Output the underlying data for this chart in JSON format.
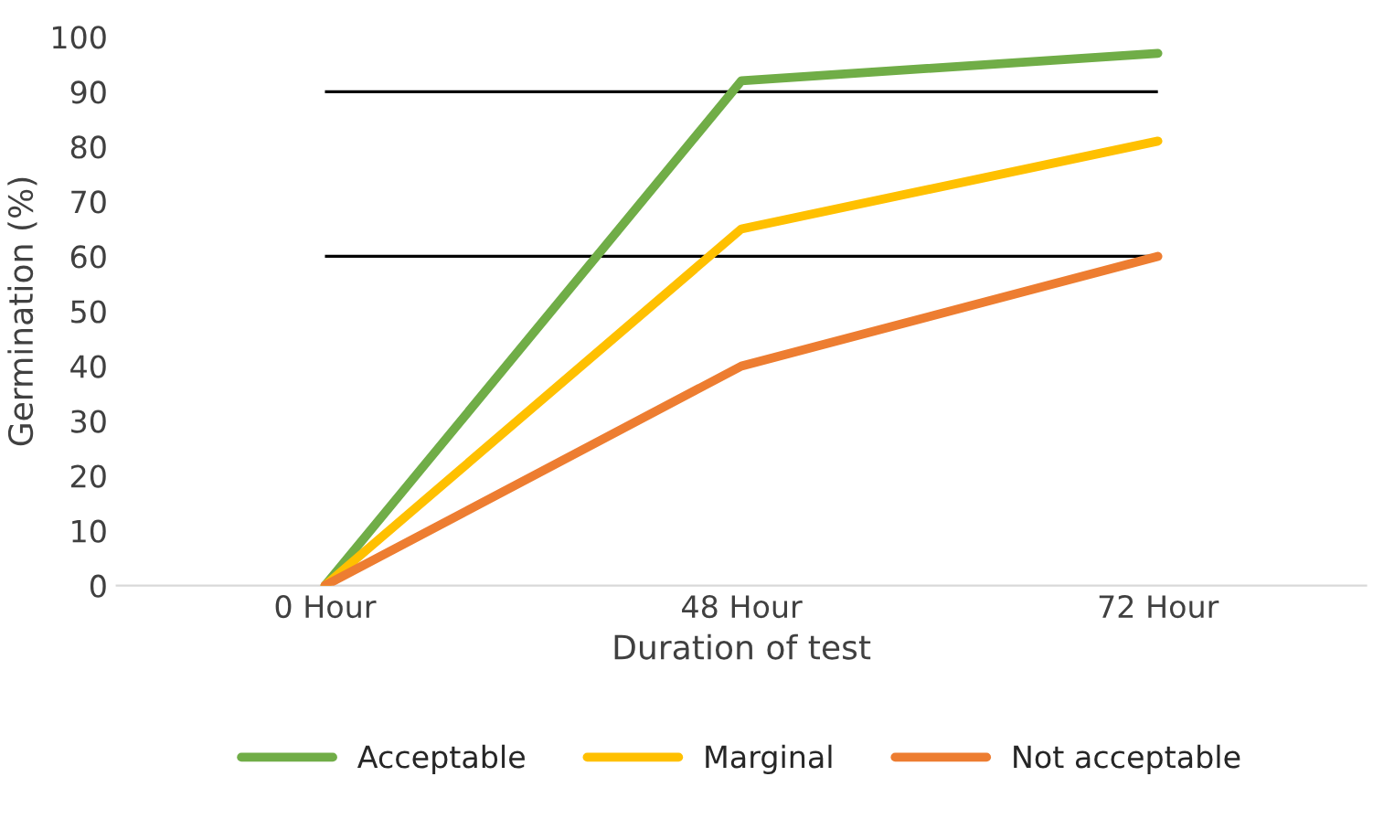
{
  "chart_data": {
    "type": "line",
    "xlabel": "Duration of test",
    "ylabel": "Germination (%)",
    "categories": [
      "0 Hour",
      "48 Hour",
      "72 Hour"
    ],
    "series": [
      {
        "name": "Acceptable",
        "color": "#70ad47",
        "values": [
          0,
          92,
          97
        ]
      },
      {
        "name": "Marginal",
        "color": "#ffc000",
        "values": [
          0,
          65,
          81
        ]
      },
      {
        "name": "Not acceptable",
        "color": "#ed7d31",
        "values": [
          0,
          40,
          60
        ]
      }
    ],
    "ylim": [
      0,
      100
    ],
    "yticks": [
      0,
      10,
      20,
      30,
      40,
      50,
      60,
      70,
      80,
      90,
      100
    ],
    "ref_lines": [
      {
        "axis": "y",
        "value": 90,
        "color": "#000000"
      },
      {
        "axis": "y",
        "value": 60,
        "color": "#000000"
      }
    ],
    "grid": false,
    "legend": "bottom",
    "marker": "none",
    "line_style": "solid"
  }
}
